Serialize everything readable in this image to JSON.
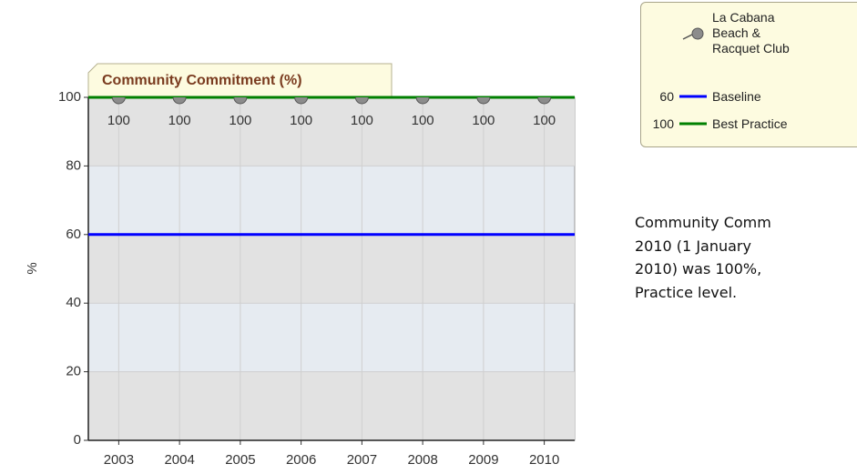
{
  "chart_data": {
    "type": "line",
    "title": "Community Commitment (%)",
    "y_label": "%",
    "categories": [
      "2003",
      "2004",
      "2005",
      "2006",
      "2007",
      "2008",
      "2009",
      "2010"
    ],
    "series": [
      {
        "name": "La Cabana Beach & Racquet Club",
        "color": "#8c8c8c",
        "values": [
          100,
          100,
          100,
          100,
          100,
          100,
          100,
          100
        ]
      }
    ],
    "reference_lines": [
      {
        "name": "Baseline",
        "value": 60,
        "color": "#0000ff"
      },
      {
        "name": "Best Practice",
        "value": 100,
        "color": "#008000"
      }
    ],
    "ylim": [
      0,
      100
    ],
    "yticks": [
      0,
      20,
      40,
      60,
      80,
      100
    ],
    "grid": true,
    "description": [
      "Community Comm",
      "2010 (1 January",
      "2010) was 100%,",
      "Practice level."
    ]
  }
}
